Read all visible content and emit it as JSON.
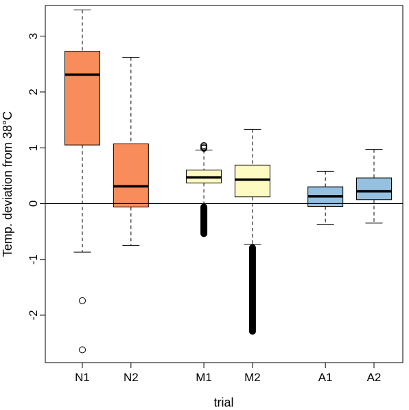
{
  "chart_data": {
    "type": "boxplot",
    "xlabel": "trial",
    "ylabel": "Temp. deviation from 38°C",
    "ylim": [
      -2.85,
      3.55
    ],
    "yticks": [
      -2,
      -1,
      0,
      1,
      2,
      3
    ],
    "ytick_labels": [
      "-2",
      "-1",
      "0",
      "1",
      "2",
      "3"
    ],
    "reference_line": 0,
    "box_colors": {
      "N": "#f88c5b",
      "M": "#fdfbc2",
      "A": "#95c0df"
    },
    "boxes": [
      {
        "label": "N1",
        "pos": 1,
        "group": "N",
        "min": -0.87,
        "q1": 1.05,
        "median": 2.31,
        "q3": 2.73,
        "max": 3.47,
        "outliers": [
          -1.74,
          -2.62
        ]
      },
      {
        "label": "N2",
        "pos": 2,
        "group": "N",
        "min": -0.75,
        "q1": -0.06,
        "median": 0.31,
        "q3": 1.07,
        "max": 2.62,
        "outliers": []
      },
      {
        "label": "M1",
        "pos": 3.5,
        "group": "M",
        "min": 0.0,
        "q1": 0.37,
        "median": 0.47,
        "q3": 0.6,
        "max": 0.96,
        "outliers": [
          1.0,
          1.02,
          1.04,
          0.99
        ],
        "outlier_band": [
          -0.6,
          0.0
        ]
      },
      {
        "label": "M2",
        "pos": 4.5,
        "group": "M",
        "min": -0.73,
        "q1": 0.12,
        "median": 0.43,
        "q3": 0.69,
        "max": 1.33,
        "outliers": [],
        "outlier_band": [
          -2.35,
          -0.73
        ]
      },
      {
        "label": "A1",
        "pos": 6,
        "group": "A",
        "min": -0.37,
        "q1": -0.05,
        "median": 0.13,
        "q3": 0.3,
        "max": 0.58,
        "outliers": []
      },
      {
        "label": "A2",
        "pos": 7,
        "group": "A",
        "min": -0.35,
        "q1": 0.07,
        "median": 0.22,
        "q3": 0.46,
        "max": 0.97,
        "outliers": []
      }
    ]
  }
}
